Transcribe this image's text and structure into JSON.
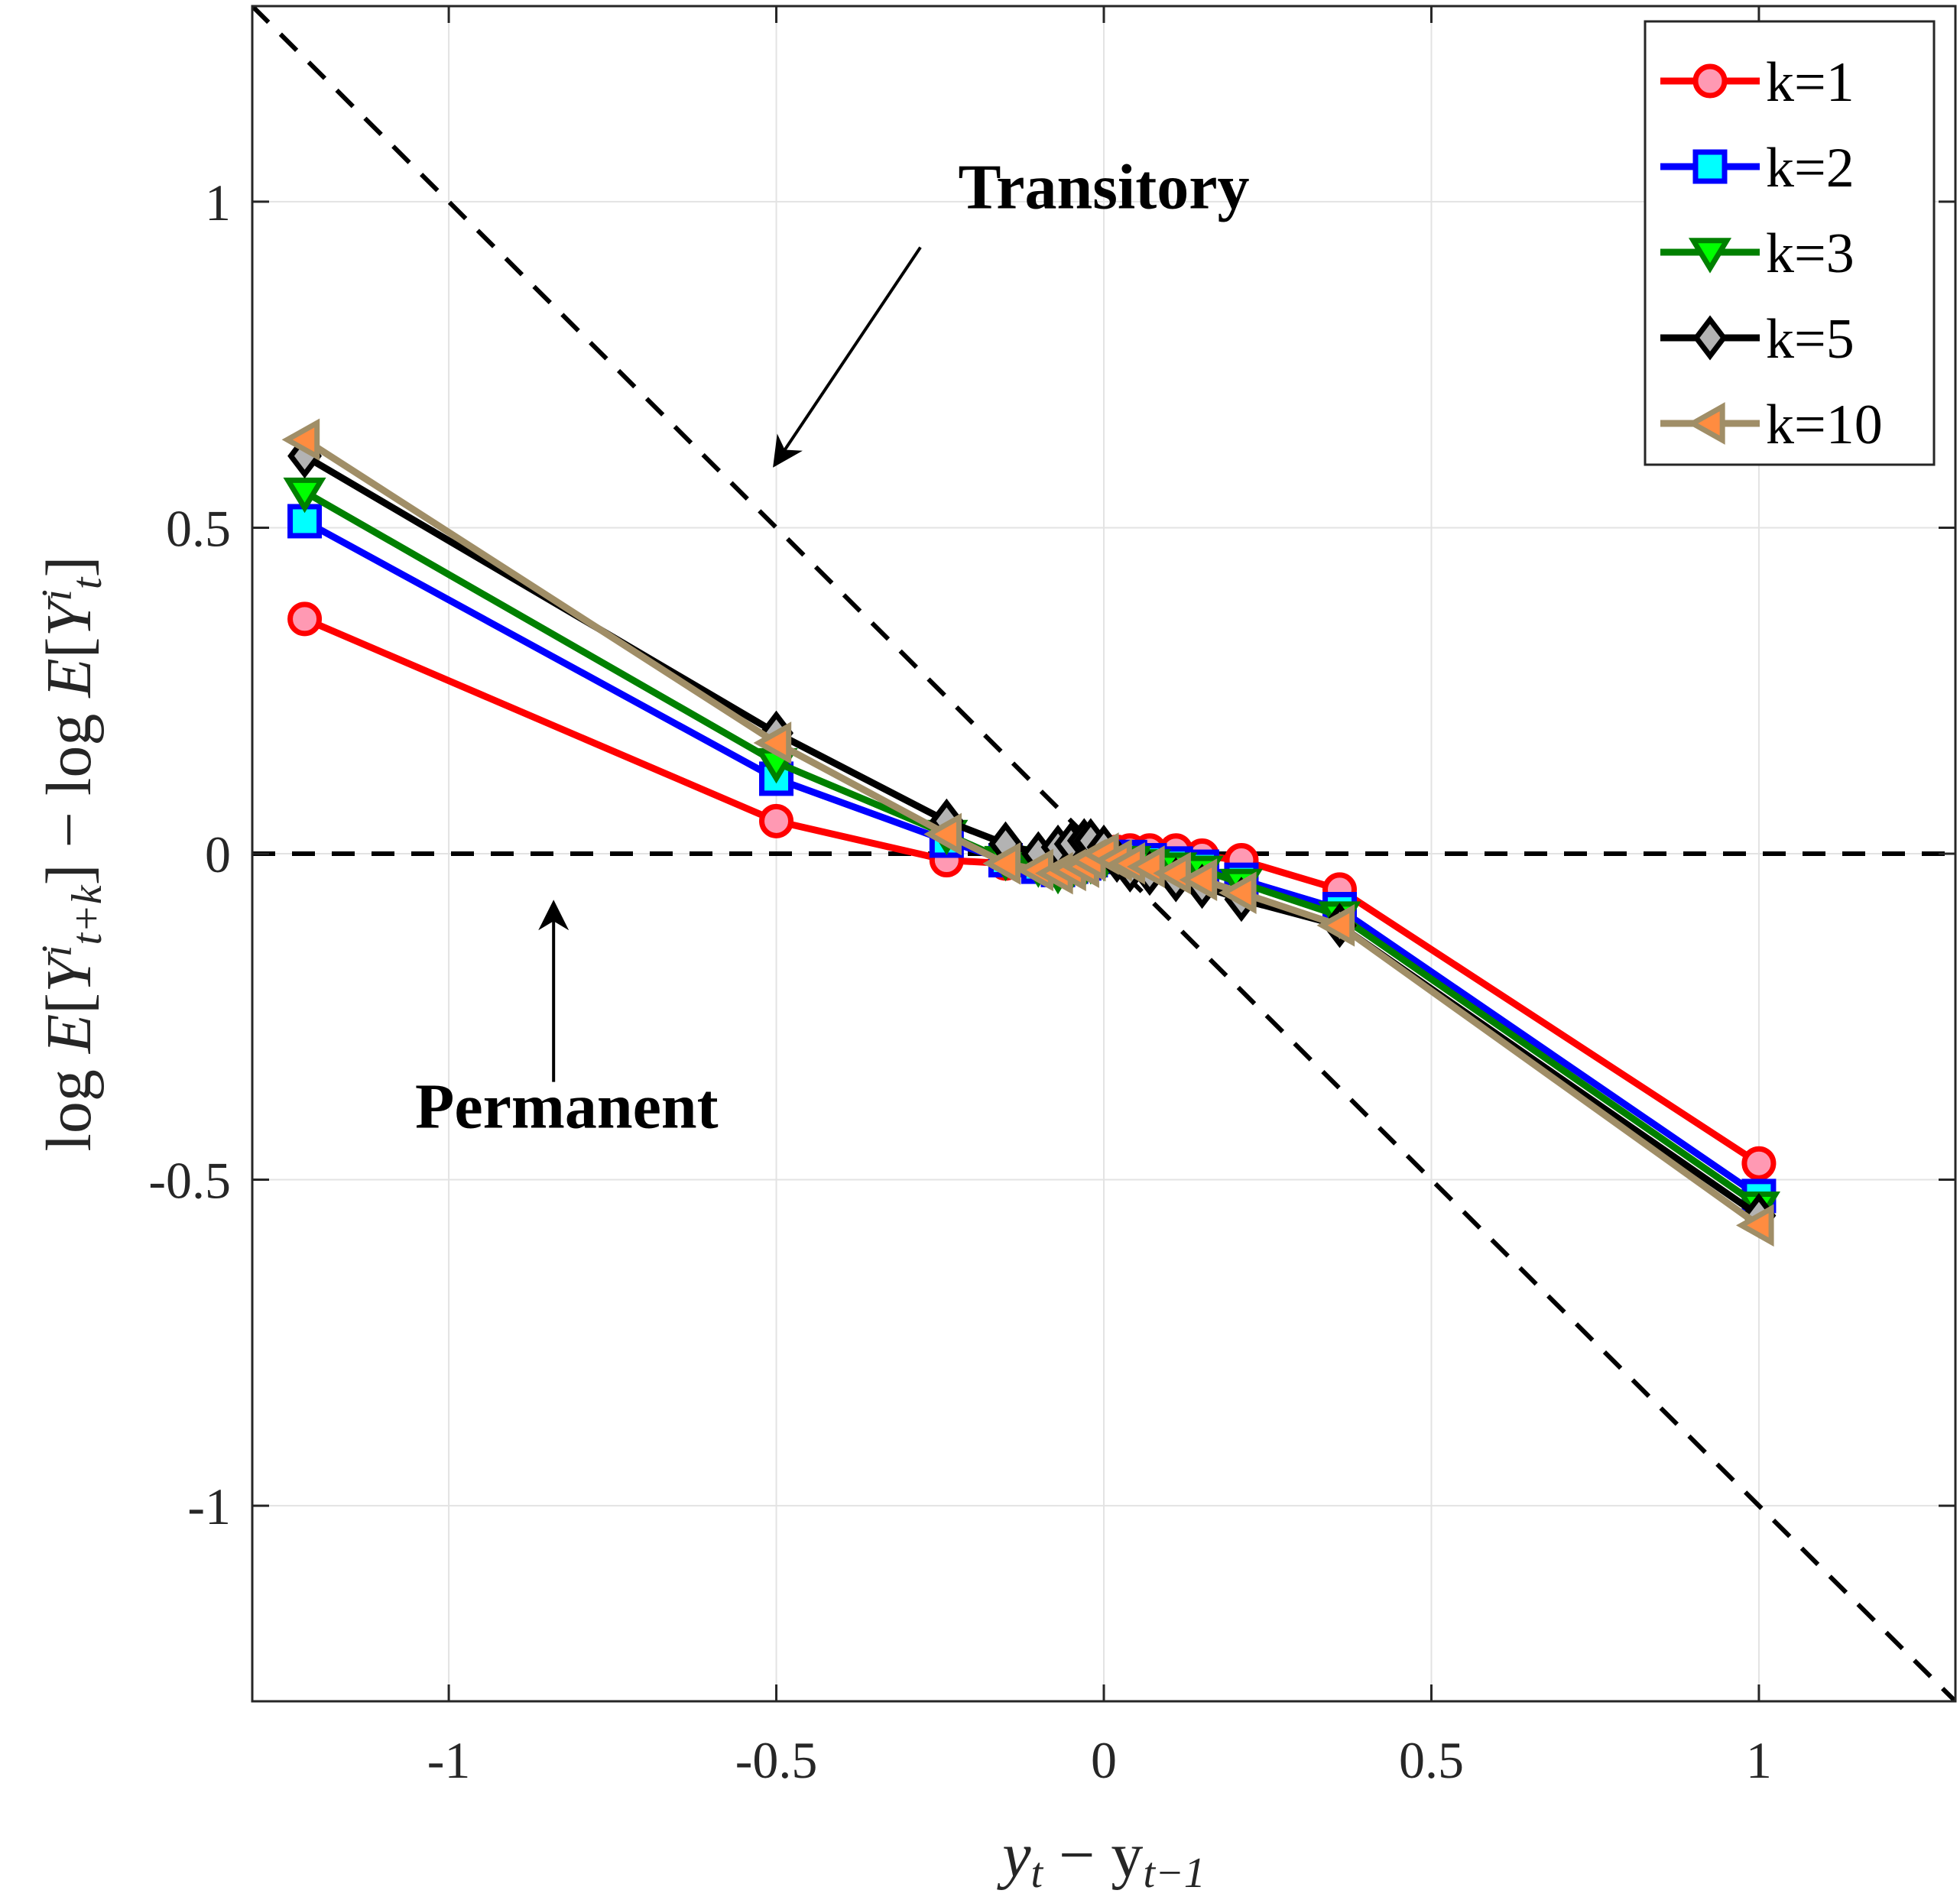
{
  "chart_data": {
    "type": "line",
    "title": "",
    "xlabel": "y_t − y_{t−1}",
    "ylabel": "log E[Y^i_{t+k}] − log E[Y^i_t]",
    "xlabel_parts": [
      "y",
      "t",
      " − y",
      "t−1"
    ],
    "ylabel_parts": [
      "log ",
      "E",
      "[",
      "Y",
      "i",
      "t+k",
      "] − log ",
      "E",
      "[",
      "Y",
      "i",
      "t",
      "]"
    ],
    "xlim": [
      -1.3,
      1.3
    ],
    "ylim": [
      -1.3,
      1.3
    ],
    "xticks": [
      -1,
      -0.5,
      0,
      0.5,
      1
    ],
    "xtick_labels": [
      "-1",
      "-0.5",
      "0",
      "0.5",
      "1"
    ],
    "yticks": [
      -1,
      -0.5,
      0,
      0.5,
      1
    ],
    "ytick_labels": [
      "-1",
      "-0.5",
      "0",
      "0.5",
      "1"
    ],
    "grid": true,
    "legend_position": "top-right",
    "series": [
      {
        "name": "k=1",
        "color": "#ff0000",
        "marker_fill": "#ff99b3",
        "marker": "circle",
        "x": [
          -1.22,
          -0.5,
          -0.24,
          -0.15,
          -0.1,
          -0.07,
          -0.05,
          -0.03,
          -0.02,
          0.0,
          0.02,
          0.04,
          0.07,
          0.11,
          0.15,
          0.21,
          0.36,
          1.0
        ],
        "y": [
          0.36,
          0.05,
          -0.01,
          -0.015,
          -0.02,
          -0.015,
          -0.01,
          -0.005,
          0.0,
          0.0,
          0.003,
          0.005,
          0.005,
          0.005,
          -0.003,
          -0.01,
          -0.055,
          -0.475
        ]
      },
      {
        "name": "k=2",
        "color": "#0000ff",
        "marker_fill": "#00ffff",
        "marker": "square",
        "x": [
          -1.22,
          -0.5,
          -0.24,
          -0.15,
          -0.1,
          -0.07,
          -0.05,
          -0.03,
          -0.02,
          0.0,
          0.02,
          0.04,
          0.07,
          0.11,
          0.15,
          0.21,
          0.36,
          1.0
        ],
        "y": [
          0.51,
          0.115,
          0.02,
          -0.01,
          -0.02,
          -0.025,
          -0.02,
          -0.015,
          -0.01,
          -0.005,
          -0.005,
          -0.005,
          -0.01,
          -0.015,
          -0.02,
          -0.04,
          -0.085,
          -0.525
        ]
      },
      {
        "name": "k=3",
        "color": "#008000",
        "marker_fill": "#00ff00",
        "marker": "triangle-down",
        "x": [
          -1.22,
          -0.5,
          -0.24,
          -0.15,
          -0.1,
          -0.07,
          -0.05,
          -0.03,
          -0.02,
          0.0,
          0.02,
          0.04,
          0.07,
          0.11,
          0.15,
          0.21,
          0.36,
          1.0
        ],
        "y": [
          0.555,
          0.14,
          0.03,
          -0.01,
          -0.02,
          -0.03,
          -0.025,
          -0.02,
          -0.015,
          -0.01,
          -0.01,
          -0.01,
          -0.015,
          -0.02,
          -0.025,
          -0.045,
          -0.095,
          -0.54
        ]
      },
      {
        "name": "k=5",
        "color": "#000000",
        "marker_fill": "#b3b3b3",
        "marker": "diamond",
        "x": [
          -1.22,
          -0.5,
          -0.24,
          -0.15,
          -0.1,
          -0.07,
          -0.05,
          -0.03,
          -0.02,
          0.0,
          0.02,
          0.04,
          0.07,
          0.11,
          0.15,
          0.21,
          0.36,
          1.0
        ],
        "y": [
          0.61,
          0.185,
          0.05,
          0.015,
          0.0,
          0.01,
          0.015,
          0.02,
          0.02,
          0.01,
          -0.01,
          -0.025,
          -0.03,
          -0.04,
          -0.05,
          -0.07,
          -0.11,
          -0.555
        ]
      },
      {
        "name": "k=10",
        "color": "#a08e67",
        "marker_fill": "#ff8c40",
        "marker": "triangle-left",
        "x": [
          -1.22,
          -0.5,
          -0.24,
          -0.15,
          -0.1,
          -0.07,
          -0.05,
          -0.03,
          -0.02,
          0.0,
          0.02,
          0.04,
          0.07,
          0.11,
          0.15,
          0.21,
          0.36,
          1.0
        ],
        "y": [
          0.635,
          0.17,
          0.03,
          -0.015,
          -0.025,
          -0.03,
          -0.025,
          -0.02,
          -0.01,
          0.0,
          -0.01,
          -0.015,
          -0.02,
          -0.03,
          -0.04,
          -0.06,
          -0.11,
          -0.57
        ]
      }
    ],
    "reference_lines": [
      {
        "name": "Permanent",
        "style": "dashed",
        "color": "#000000",
        "slope": 0,
        "intercept": 0
      },
      {
        "name": "Transitory",
        "style": "dashed",
        "color": "#000000",
        "slope": -1,
        "intercept": 0
      }
    ],
    "annotations": [
      {
        "text": "Transitory",
        "x_text": 0.0,
        "y_text": 0.99,
        "arrow_from": [
          -0.28,
          0.93
        ],
        "arrow_to": [
          -0.5,
          0.6
        ]
      },
      {
        "text": "Permanent",
        "x_text": -0.82,
        "y_text": -0.42,
        "arrow_from": [
          -0.84,
          -0.35
        ],
        "arrow_to": [
          -0.84,
          -0.08
        ]
      }
    ]
  }
}
